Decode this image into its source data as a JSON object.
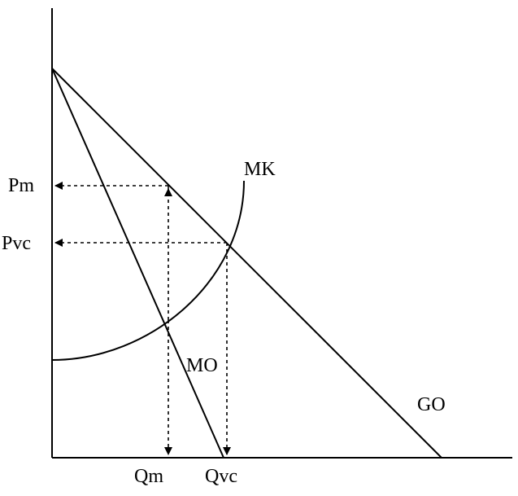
{
  "labels": {
    "price_monopoly": "Pm",
    "price_perfect_competition": "Pvc",
    "quantity_monopoly": "Qm",
    "quantity_perfect_competition": "Qvc",
    "marginal_cost_curve": "MK",
    "marginal_revenue_curve": "MO",
    "demand_curve": "GO"
  }
}
